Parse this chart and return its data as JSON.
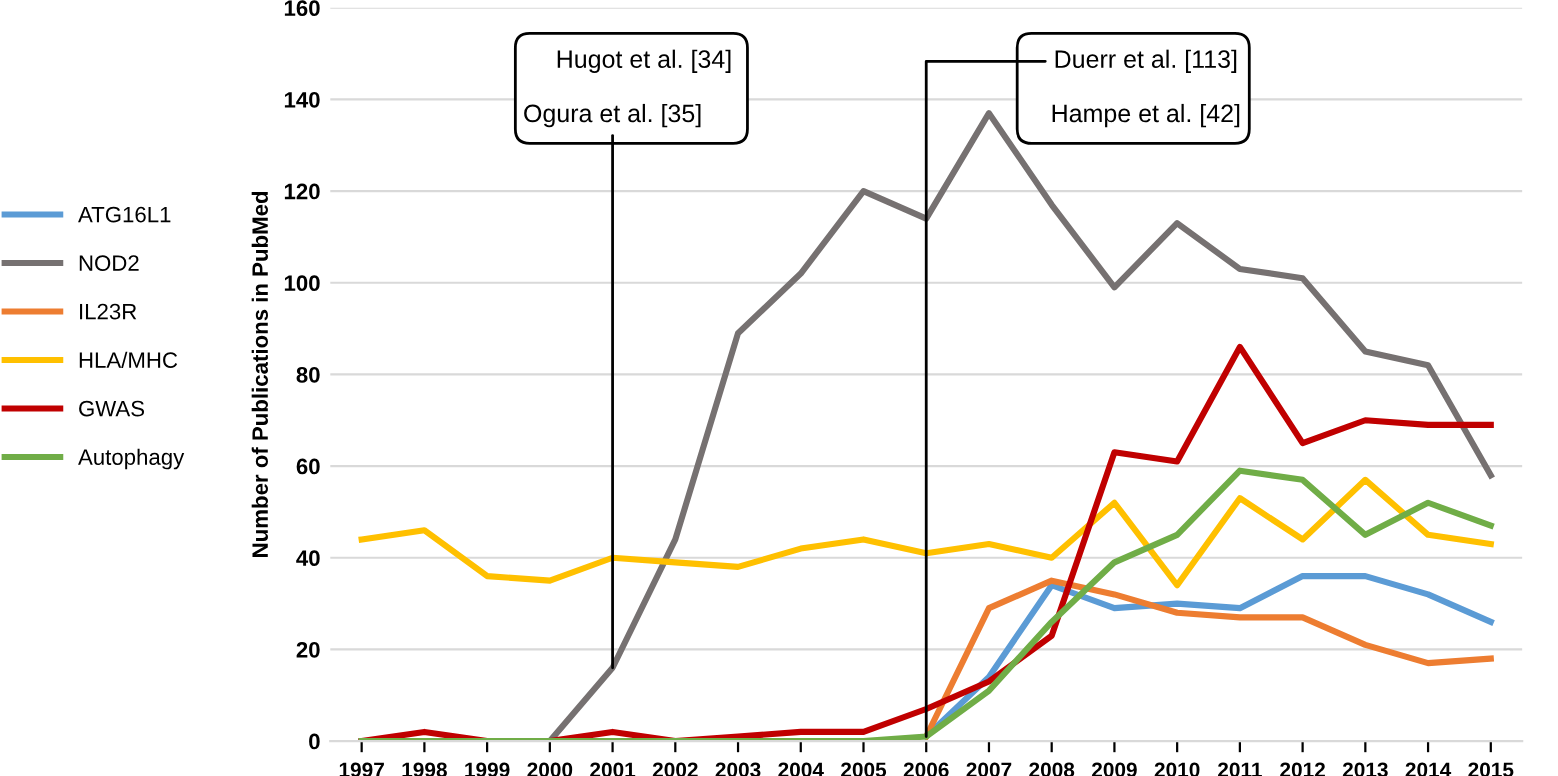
{
  "chart_data": {
    "type": "line",
    "ylabel": "Number of Publications in PubMed",
    "categories": [
      "1997",
      "1998",
      "1999",
      "2000",
      "2001",
      "2002",
      "2003",
      "2004",
      "2005",
      "2006",
      "2007",
      "2008",
      "2009",
      "2010",
      "2011",
      "2012",
      "2013",
      "2014",
      "2015"
    ],
    "series": [
      {
        "name": "ATG16L1",
        "color": "#5b9bd5",
        "values": [
          null,
          null,
          null,
          null,
          null,
          null,
          null,
          null,
          null,
          1,
          14,
          34,
          29,
          30,
          29,
          36,
          36,
          32,
          26
        ]
      },
      {
        "name": "NOD2",
        "color": "#767171",
        "values": [
          0,
          0,
          0,
          0,
          16,
          44,
          89,
          102,
          120,
          114,
          137,
          117,
          99,
          113,
          103,
          101,
          85,
          82,
          58
        ]
      },
      {
        "name": "IL23R",
        "color": "#ed7d31",
        "values": [
          null,
          null,
          null,
          null,
          null,
          null,
          null,
          null,
          null,
          1,
          29,
          35,
          32,
          28,
          27,
          27,
          21,
          17,
          18
        ]
      },
      {
        "name": "HLA/MHC",
        "color": "#ffc000",
        "values": [
          44,
          46,
          36,
          35,
          40,
          39,
          38,
          42,
          44,
          41,
          43,
          40,
          52,
          34,
          53,
          44,
          57,
          45,
          43
        ]
      },
      {
        "name": "GWAS",
        "color": "#c00000",
        "values": [
          0,
          2,
          0,
          0,
          2,
          0,
          1,
          2,
          2,
          7,
          13,
          23,
          63,
          61,
          86,
          65,
          70,
          69,
          69
        ]
      },
      {
        "name": "Autophagy",
        "color": "#70ad47",
        "values": [
          0,
          0,
          0,
          0,
          0,
          0,
          0,
          0,
          0,
          1,
          11,
          26,
          39,
          45,
          59,
          57,
          45,
          52,
          47
        ]
      }
    ],
    "ylim": [
      0,
      160
    ],
    "yticks": [
      0,
      20,
      40,
      60,
      80,
      100,
      120,
      140,
      160
    ],
    "grid": "y",
    "legend": "left",
    "marker": "none",
    "line_style": "solid",
    "annotations": [
      "Hugot et al. [34]",
      {
        "text": "Ogura et al. [35]",
        "x": "2001",
        "y": 16
      },
      {
        "text": "Duerr et al. [113]",
        "x": "2006",
        "y": 1
      },
      "Hampe et al. [42]"
    ]
  }
}
